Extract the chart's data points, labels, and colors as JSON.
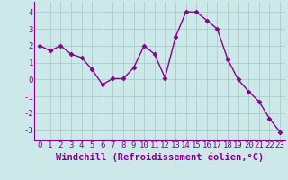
{
  "x": [
    0,
    1,
    2,
    3,
    4,
    5,
    6,
    7,
    8,
    9,
    10,
    11,
    12,
    13,
    14,
    15,
    16,
    17,
    18,
    19,
    20,
    21,
    22,
    23
  ],
  "y": [
    2.0,
    1.7,
    2.0,
    1.5,
    1.3,
    0.6,
    -0.3,
    0.05,
    0.05,
    0.7,
    2.0,
    1.5,
    0.1,
    2.5,
    4.0,
    4.0,
    3.5,
    3.0,
    1.2,
    0.0,
    -0.7,
    -1.3,
    -2.3,
    -3.1
  ],
  "line_color": "#880088",
  "marker": "D",
  "marker_size": 2.5,
  "bg_color": "#cce8e8",
  "grid_color": "#aacccc",
  "xlabel": "Windchill (Refroidissement éolien,°C)",
  "xlabel_fontsize": 7.5,
  "xlim": [
    -0.5,
    23.5
  ],
  "ylim": [
    -3.6,
    4.6
  ],
  "yticks": [
    -3,
    -2,
    -1,
    0,
    1,
    2,
    3,
    4
  ],
  "xticks": [
    0,
    1,
    2,
    3,
    4,
    5,
    6,
    7,
    8,
    9,
    10,
    11,
    12,
    13,
    14,
    15,
    16,
    17,
    18,
    19,
    20,
    21,
    22,
    23
  ],
  "tick_fontsize": 6.5,
  "line_width": 1.0
}
